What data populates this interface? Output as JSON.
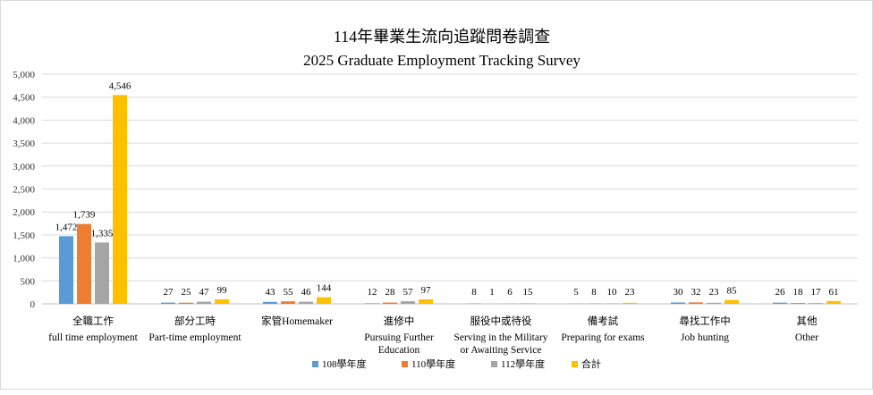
{
  "chart_data": {
    "type": "bar",
    "title": "114年畢業生流向追蹤問卷調查",
    "subtitle": "2025 Graduate Employment Tracking Survey",
    "xlabel": "",
    "ylabel": "",
    "ylim": [
      0,
      5000
    ],
    "yticks": [
      "0",
      "500",
      "1,000",
      "1,500",
      "2,000",
      "2,500",
      "3,000",
      "3,500",
      "4,000",
      "4,500",
      "5,000"
    ],
    "grid": true,
    "legend_position": "bottom",
    "categories": [
      {
        "zh": "全職工作",
        "en": [
          "full time employment"
        ]
      },
      {
        "zh": "部分工時",
        "en": [
          "Part-time employment"
        ]
      },
      {
        "zh": "家管Homemaker",
        "en": []
      },
      {
        "zh": "進修中",
        "en": [
          "Pursuing Further",
          "Education"
        ]
      },
      {
        "zh": "服役中或待役",
        "en": [
          "Serving in the Military",
          "or Awaiting Service"
        ]
      },
      {
        "zh": "備考試",
        "en": [
          "Preparing for exams"
        ]
      },
      {
        "zh": "尋找工作中",
        "en": [
          "Job hunting"
        ]
      },
      {
        "zh": "其他",
        "en": [
          "Other"
        ]
      }
    ],
    "series": [
      {
        "name": "108學年度",
        "color": "#5b9bd5",
        "values": [
          1472,
          27,
          43,
          12,
          8,
          5,
          30,
          26
        ],
        "labels": [
          "1,472",
          "27",
          "43",
          "12",
          "8",
          "5",
          "30",
          "26"
        ]
      },
      {
        "name": "110學年度",
        "color": "#ed7d31",
        "values": [
          1739,
          25,
          55,
          28,
          1,
          8,
          32,
          18
        ],
        "labels": [
          "1,739",
          "25",
          "55",
          "28",
          "1",
          "8",
          "32",
          "18"
        ]
      },
      {
        "name": "112學年度",
        "color": "#a5a5a5",
        "values": [
          1335,
          47,
          46,
          57,
          6,
          10,
          23,
          17
        ],
        "labels": [
          "1,335",
          "47",
          "46",
          "57",
          "6",
          "10",
          "23",
          "17"
        ]
      },
      {
        "name": "合計",
        "color": "#ffc000",
        "values": [
          4546,
          99,
          144,
          97,
          15,
          23,
          85,
          61
        ],
        "labels": [
          "4,546",
          "99",
          "144",
          "97",
          "15",
          "23",
          "85",
          "61"
        ]
      }
    ]
  }
}
